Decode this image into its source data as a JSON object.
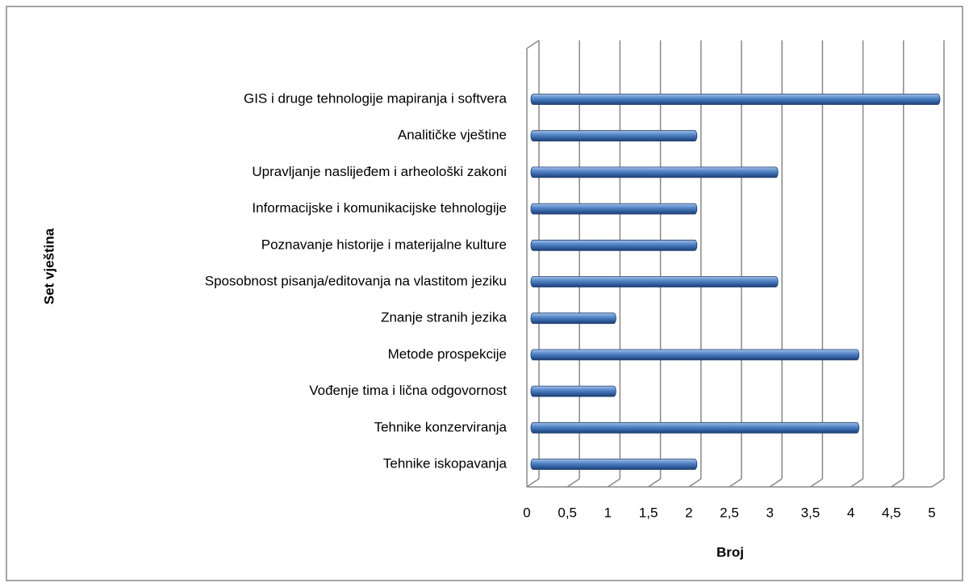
{
  "chart_data": {
    "type": "barh",
    "categories": [
      "GIS i druge tehnologije mapiranja i softvera",
      "Analitičke vještine",
      "Upravljanje naslijeđem i arheološki zakoni",
      "Informacijske i komunikacijske tehnologije",
      "Poznavanje historije i materijalne kulture",
      "Sposobnost pisanja/editovanja na vlastitom jeziku",
      "Znanje stranih jezika",
      "Metode prospekcije",
      "Vođenje tima i lična odgovornost",
      "Tehnike konzerviranja",
      "Tehnike iskopavanja"
    ],
    "values": [
      5,
      2,
      3,
      2,
      2,
      3,
      1,
      4,
      1,
      4,
      2
    ],
    "color": "#4f81bd",
    "xlim": [
      0,
      5
    ],
    "xticks": [
      0,
      {
        "value": 0.5,
        "label": "0,5"
      },
      1,
      {
        "value": 1.5,
        "label": "1,5"
      },
      2,
      {
        "value": 2.5,
        "label": "2,5"
      },
      3,
      {
        "value": 3.5,
        "label": "3,5"
      },
      4,
      {
        "value": 4.5,
        "label": "4,5"
      },
      5
    ],
    "grid": true,
    "xlabel": "Broj",
    "ylabel": "Set vještina"
  }
}
